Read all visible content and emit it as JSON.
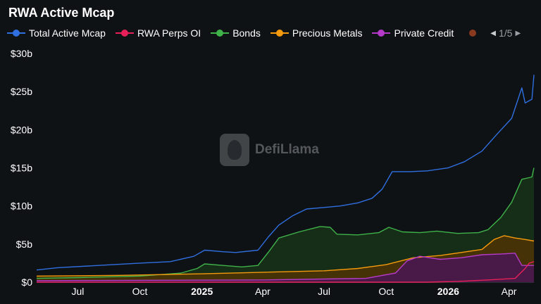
{
  "title": "RWA Active Mcap",
  "legend": {
    "items": [
      {
        "name": "Total Active Mcap",
        "color": "#2f6fe0"
      },
      {
        "name": "RWA Perps OI",
        "color": "#e8205a"
      },
      {
        "name": "Bonds",
        "color": "#3fb24a"
      },
      {
        "name": "Precious Metals",
        "color": "#f59a0c"
      },
      {
        "name": "Private Credit",
        "color": "#b53ac9"
      }
    ],
    "partial_color": "#8a3a1e",
    "page_indicator": "1/5"
  },
  "watermark": "DefiLlama",
  "chart_data": {
    "type": "area",
    "title": "RWA Active Mcap",
    "xlabel": "",
    "ylabel": "",
    "x_range": [
      "2024-05-01",
      "2026-05-08"
    ],
    "ylim": [
      0,
      30
    ],
    "y_ticks": [
      {
        "v": 0,
        "label": "$0"
      },
      {
        "v": 5,
        "label": "$5b"
      },
      {
        "v": 10,
        "label": "$10b"
      },
      {
        "v": 15,
        "label": "$15b"
      },
      {
        "v": 20,
        "label": "$20b"
      },
      {
        "v": 25,
        "label": "$25b"
      },
      {
        "v": 30,
        "label": "$30b"
      }
    ],
    "x_ticks": [
      {
        "date": "2024-07-01",
        "label": "Jul",
        "bold": false
      },
      {
        "date": "2024-10-01",
        "label": "Oct",
        "bold": false
      },
      {
        "date": "2025-01-01",
        "label": "2025",
        "bold": true
      },
      {
        "date": "2025-04-01",
        "label": "Apr",
        "bold": false
      },
      {
        "date": "2025-07-01",
        "label": "Jul",
        "bold": false
      },
      {
        "date": "2025-10-01",
        "label": "Oct",
        "bold": false
      },
      {
        "date": "2026-01-01",
        "label": "2026",
        "bold": true
      },
      {
        "date": "2026-04-01",
        "label": "Apr",
        "bold": false
      }
    ],
    "grid": false,
    "legend_position": "top",
    "series": [
      {
        "name": "Total Active Mcap",
        "color": "#2f6fe0",
        "fill": false,
        "points": [
          [
            "2024-05-01",
            1.6
          ],
          [
            "2024-06-01",
            1.9
          ],
          [
            "2024-08-01",
            2.2
          ],
          [
            "2024-10-01",
            2.5
          ],
          [
            "2024-11-15",
            2.7
          ],
          [
            "2024-12-20",
            3.4
          ],
          [
            "2025-01-05",
            4.2
          ],
          [
            "2025-02-01",
            4.0
          ],
          [
            "2025-02-20",
            3.9
          ],
          [
            "2025-03-25",
            4.2
          ],
          [
            "2025-04-10",
            6.0
          ],
          [
            "2025-04-25",
            7.5
          ],
          [
            "2025-05-15",
            8.7
          ],
          [
            "2025-06-05",
            9.6
          ],
          [
            "2025-07-01",
            9.8
          ],
          [
            "2025-07-25",
            10.0
          ],
          [
            "2025-08-20",
            10.4
          ],
          [
            "2025-09-10",
            11.0
          ],
          [
            "2025-09-25",
            12.2
          ],
          [
            "2025-10-10",
            14.5
          ],
          [
            "2025-11-05",
            14.5
          ],
          [
            "2025-12-01",
            14.6
          ],
          [
            "2026-01-01",
            15.0
          ],
          [
            "2026-01-25",
            15.8
          ],
          [
            "2026-02-20",
            17.2
          ],
          [
            "2026-03-15",
            19.5
          ],
          [
            "2026-04-05",
            21.5
          ],
          [
            "2026-04-20",
            25.5
          ],
          [
            "2026-04-25",
            23.5
          ],
          [
            "2026-05-05",
            24.0
          ],
          [
            "2026-05-08",
            27.2
          ]
        ]
      },
      {
        "name": "Bonds",
        "color": "#3fb24a",
        "fill": true,
        "fill_color": "#173319",
        "points": [
          [
            "2024-05-01",
            0.5
          ],
          [
            "2024-07-01",
            0.6
          ],
          [
            "2024-10-01",
            0.8
          ],
          [
            "2024-12-01",
            1.2
          ],
          [
            "2024-12-25",
            1.8
          ],
          [
            "2025-01-05",
            2.4
          ],
          [
            "2025-02-01",
            2.2
          ],
          [
            "2025-03-01",
            2.0
          ],
          [
            "2025-03-25",
            2.2
          ],
          [
            "2025-04-10",
            4.0
          ],
          [
            "2025-04-25",
            5.8
          ],
          [
            "2025-05-25",
            6.6
          ],
          [
            "2025-06-25",
            7.3
          ],
          [
            "2025-07-10",
            7.2
          ],
          [
            "2025-07-20",
            6.3
          ],
          [
            "2025-08-20",
            6.2
          ],
          [
            "2025-09-20",
            6.5
          ],
          [
            "2025-10-05",
            7.2
          ],
          [
            "2025-10-25",
            6.6
          ],
          [
            "2025-11-20",
            6.5
          ],
          [
            "2025-12-15",
            6.7
          ],
          [
            "2026-01-15",
            6.4
          ],
          [
            "2026-02-15",
            6.5
          ],
          [
            "2026-03-01",
            6.9
          ],
          [
            "2026-03-20",
            8.5
          ],
          [
            "2026-04-05",
            10.5
          ],
          [
            "2026-04-20",
            13.5
          ],
          [
            "2026-05-05",
            13.8
          ],
          [
            "2026-05-08",
            15.0
          ]
        ]
      },
      {
        "name": "Precious Metals",
        "color": "#f59a0c",
        "fill": true,
        "fill_color": "#4d3505",
        "points": [
          [
            "2024-05-01",
            0.8
          ],
          [
            "2024-09-01",
            0.9
          ],
          [
            "2025-01-01",
            1.1
          ],
          [
            "2025-04-01",
            1.3
          ],
          [
            "2025-07-01",
            1.5
          ],
          [
            "2025-08-20",
            1.8
          ],
          [
            "2025-10-01",
            2.3
          ],
          [
            "2025-11-10",
            3.2
          ],
          [
            "2025-12-20",
            3.5
          ],
          [
            "2026-01-20",
            3.9
          ],
          [
            "2026-02-20",
            4.3
          ],
          [
            "2026-03-10",
            5.6
          ],
          [
            "2026-03-25",
            6.1
          ],
          [
            "2026-04-10",
            5.8
          ],
          [
            "2026-04-25",
            5.6
          ],
          [
            "2026-05-08",
            5.4
          ]
        ]
      },
      {
        "name": "Private Credit",
        "color": "#b53ac9",
        "fill": true,
        "fill_color": "#4a1653",
        "points": [
          [
            "2024-05-01",
            0.2
          ],
          [
            "2025-04-01",
            0.3
          ],
          [
            "2025-09-01",
            0.5
          ],
          [
            "2025-10-15",
            1.2
          ],
          [
            "2025-11-01",
            2.8
          ],
          [
            "2025-11-20",
            3.4
          ],
          [
            "2025-12-20",
            3.0
          ],
          [
            "2026-01-20",
            3.2
          ],
          [
            "2026-02-20",
            3.6
          ],
          [
            "2026-03-20",
            3.7
          ],
          [
            "2026-04-10",
            3.8
          ],
          [
            "2026-04-20",
            2.2
          ],
          [
            "2026-05-08",
            2.2
          ]
        ]
      },
      {
        "name": "RWA Perps OI",
        "color": "#e8205a",
        "fill": false,
        "points": [
          [
            "2024-05-01",
            0.0
          ],
          [
            "2025-12-01",
            0.0
          ],
          [
            "2026-01-15",
            0.1
          ],
          [
            "2026-03-01",
            0.3
          ],
          [
            "2026-04-10",
            0.5
          ],
          [
            "2026-04-25",
            1.8
          ],
          [
            "2026-05-01",
            2.5
          ],
          [
            "2026-05-08",
            2.7
          ]
        ]
      }
    ]
  }
}
